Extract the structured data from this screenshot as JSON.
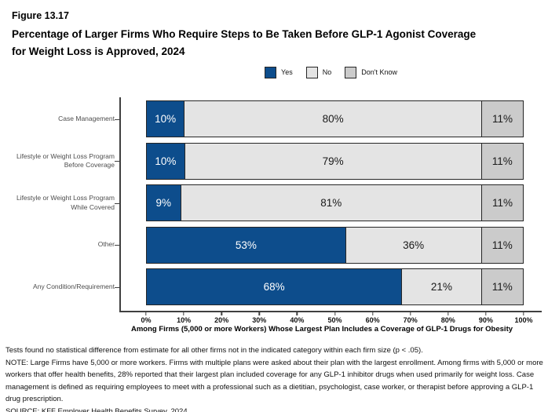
{
  "figure_label": "Figure 13.17",
  "title_lines": [
    "Percentage of Larger Firms Who Require Steps to Be Taken Before GLP-1 Agonist Coverage",
    "for Weight Loss is Approved, 2024"
  ],
  "chart_data": {
    "type": "bar",
    "orientation": "horizontal",
    "stacked": true,
    "title": "Percentage of Larger Firms Who Require Steps to Be Taken Before GLP-1 Agonist Coverage for Weight Loss is Approved, 2024",
    "categories": [
      "Case Management",
      "Lifestyle or Weight Loss Program Before Coverage",
      "Lifestyle or Weight Loss Program While Covered",
      "Other",
      "Any Condition/Requirement"
    ],
    "series": [
      {
        "name": "Yes",
        "color": "#0d4d8c",
        "text_color": "#ffffff",
        "values": [
          10,
          10,
          9,
          53,
          68
        ]
      },
      {
        "name": "No",
        "color": "#e4e4e4",
        "text_color": "#1a1a1a",
        "values": [
          80,
          79,
          81,
          36,
          21
        ]
      },
      {
        "name": "Don't Know",
        "color": "#cbcbcb",
        "text_color": "#1a1a1a",
        "values": [
          11,
          11,
          11,
          11,
          11
        ]
      }
    ],
    "value_suffix": "%",
    "x_ticks": [
      "0%",
      "10%",
      "20%",
      "30%",
      "40%",
      "50%",
      "60%",
      "70%",
      "80%",
      "90%",
      "100%"
    ],
    "xlim": [
      0,
      100
    ],
    "xlabel": "Among Firms (5,000 or more Workers) Whose Largest Plan Includes a Coverage of GLP-1 Drugs for Obesity",
    "legend_position": "top-center",
    "grid": false
  },
  "notes": {
    "stat_note": "Tests found no statistical difference from estimate for all other firms not in the indicated category within each firm size (p < .05).",
    "note": "NOTE: Large Firms have 5,000 or more workers.  Firms with multiple plans were asked about their plan with the largest enrollment.  Among firms with 5,000 or more workers that offer health benefits, 28% reported that their largest plan included coverage for any GLP-1 inhibitor drugs when used primarily for weight loss. Case management is defined as requiring employees to meet with a professional such as a dietitian, psychologist, case worker, or therapist before approving a GLP-1 drug prescription.",
    "source": "SOURCE: KFF Employer Health Benefits Survey, 2024"
  }
}
